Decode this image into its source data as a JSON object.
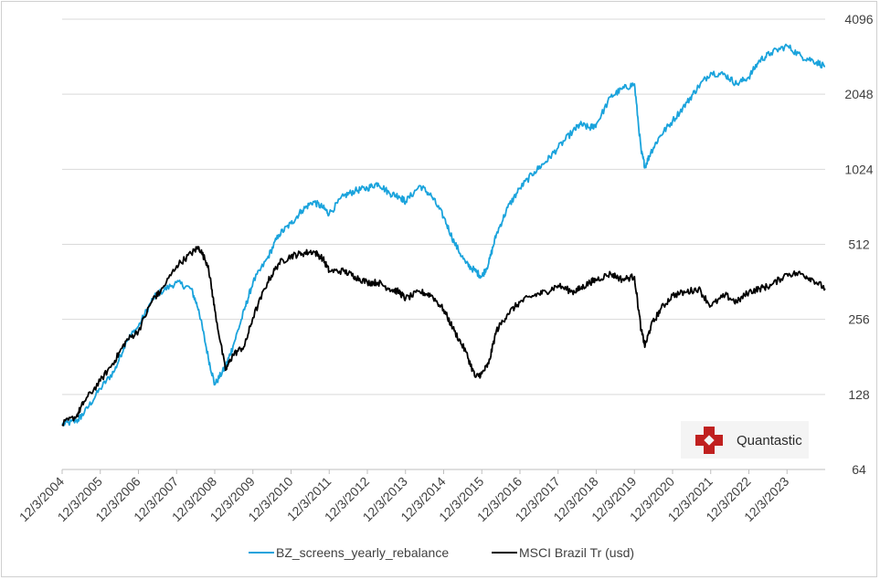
{
  "chart_data": {
    "type": "line",
    "title": "",
    "xlabel": "",
    "ylabel": "",
    "y_scale": "log2",
    "ylim": [
      64,
      4096
    ],
    "y_ticks": [
      "64",
      "128",
      "256",
      "512",
      "1024",
      "2048",
      "4096"
    ],
    "x_ticks": [
      "12/3/2004",
      "12/3/2005",
      "12/3/2006",
      "12/3/2007",
      "12/3/2008",
      "12/3/2009",
      "12/3/2010",
      "12/3/2011",
      "12/3/2012",
      "12/3/2013",
      "12/3/2014",
      "12/3/2015",
      "12/3/2016",
      "12/3/2017",
      "12/3/2018",
      "12/3/2019",
      "12/3/2020",
      "12/3/2021",
      "12/3/2022",
      "12/3/2023"
    ],
    "xlim": [
      2004.92,
      2024.92
    ],
    "legend_position": "bottom",
    "series": [
      {
        "name": "BZ_screens_yearly_rebalance",
        "color": "#1aa3dc",
        "x": [
          2004.92,
          2005.3,
          2005.5,
          2005.92,
          2006.3,
          2006.6,
          2006.92,
          2007.3,
          2007.5,
          2007.92,
          2008.3,
          2008.5,
          2008.75,
          2008.92,
          2009.2,
          2009.4,
          2009.7,
          2009.92,
          2010.3,
          2010.6,
          2010.92,
          2011.2,
          2011.5,
          2011.75,
          2011.92,
          2012.3,
          2012.6,
          2012.92,
          2013.2,
          2013.5,
          2013.75,
          2013.92,
          2014.3,
          2014.6,
          2014.92,
          2015.2,
          2015.5,
          2015.75,
          2015.92,
          2016.1,
          2016.3,
          2016.6,
          2016.92,
          2017.3,
          2017.6,
          2017.92,
          2018.3,
          2018.5,
          2018.75,
          2018.92,
          2019.3,
          2019.6,
          2019.92,
          2020.1,
          2020.2,
          2020.35,
          2020.6,
          2020.92,
          2021.3,
          2021.6,
          2021.92,
          2022.3,
          2022.6,
          2022.92,
          2023.2,
          2023.5,
          2023.92,
          2024.3,
          2024.6,
          2024.92
        ],
        "values": [
          97,
          100,
          108,
          135,
          160,
          210,
          240,
          310,
          330,
          360,
          340,
          280,
          180,
          140,
          165,
          200,
          280,
          360,
          450,
          560,
          620,
          700,
          760,
          720,
          680,
          800,
          840,
          860,
          900,
          820,
          800,
          760,
          880,
          800,
          660,
          520,
          430,
          400,
          380,
          430,
          560,
          720,
          860,
          1000,
          1100,
          1250,
          1450,
          1550,
          1500,
          1550,
          2000,
          2150,
          2250,
          1200,
          1050,
          1200,
          1400,
          1600,
          1900,
          2200,
          2500,
          2450,
          2250,
          2400,
          2800,
          3000,
          3200,
          2900,
          2800,
          2650
        ]
      },
      {
        "name": "MSCI Brazil Tr (usd)",
        "color": "#000000",
        "x": [
          2004.92,
          2005.3,
          2005.5,
          2005.92,
          2006.3,
          2006.6,
          2006.92,
          2007.3,
          2007.5,
          2007.92,
          2008.3,
          2008.5,
          2008.75,
          2008.92,
          2009.2,
          2009.4,
          2009.7,
          2009.92,
          2010.3,
          2010.6,
          2010.92,
          2011.2,
          2011.5,
          2011.75,
          2011.92,
          2012.3,
          2012.6,
          2012.92,
          2013.2,
          2013.5,
          2013.75,
          2013.92,
          2014.3,
          2014.6,
          2014.92,
          2015.2,
          2015.5,
          2015.75,
          2015.92,
          2016.1,
          2016.3,
          2016.6,
          2016.92,
          2017.3,
          2017.6,
          2017.92,
          2018.3,
          2018.5,
          2018.75,
          2018.92,
          2019.3,
          2019.6,
          2019.92,
          2020.1,
          2020.2,
          2020.35,
          2020.6,
          2020.92,
          2021.3,
          2021.6,
          2021.92,
          2022.3,
          2022.6,
          2022.92,
          2023.2,
          2023.5,
          2023.92,
          2024.3,
          2024.6,
          2024.92
        ],
        "values": [
          97,
          105,
          120,
          145,
          175,
          210,
          230,
          310,
          330,
          420,
          470,
          500,
          420,
          280,
          160,
          185,
          200,
          260,
          360,
          430,
          460,
          470,
          480,
          450,
          400,
          400,
          380,
          360,
          360,
          340,
          330,
          310,
          330,
          320,
          280,
          230,
          190,
          150,
          155,
          170,
          230,
          270,
          300,
          320,
          330,
          350,
          330,
          340,
          360,
          370,
          390,
          370,
          380,
          230,
          200,
          240,
          280,
          320,
          330,
          340,
          290,
          320,
          300,
          330,
          340,
          350,
          390,
          390,
          370,
          340
        ]
      }
    ]
  },
  "logo": {
    "text": "Quantastic",
    "color": "#c0201f"
  }
}
